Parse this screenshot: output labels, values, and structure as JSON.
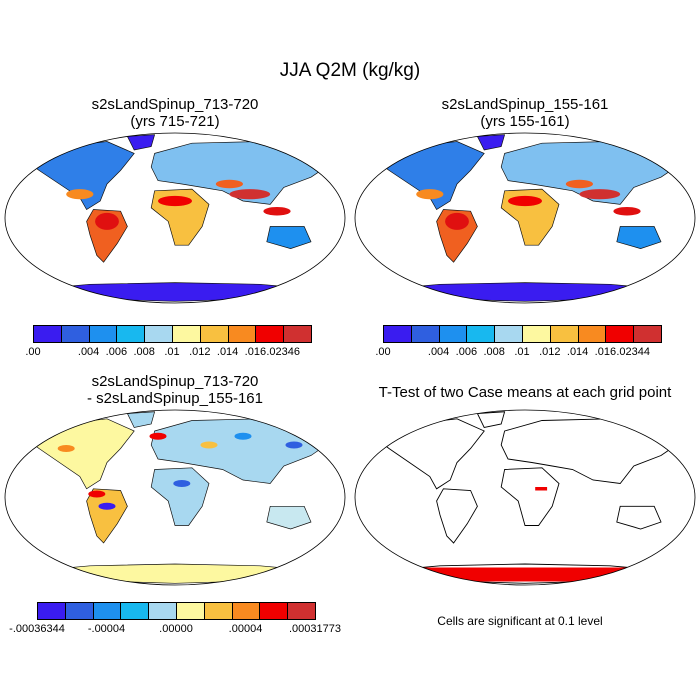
{
  "title": "JJA Q2M (kg/kg)",
  "panels": [
    {
      "title": "s2sLandSpinup_713-720\n(yrs 715-721)",
      "colorbar": {
        "colors": [
          "#3a1cf0",
          "#2f5fe0",
          "#1e90ef",
          "#18b8ef",
          "#a8d8f0",
          "#fdf8a0",
          "#f8c040",
          "#f88a20",
          "#f00000",
          "#d03030"
        ],
        "labels": [
          ".00",
          ".004",
          ".006",
          ".008",
          ".01",
          ".012",
          ".014",
          ".016",
          ".02346"
        ]
      }
    },
    {
      "title": "s2sLandSpinup_155-161\n(yrs 155-161)",
      "colorbar": {
        "colors": [
          "#3a1cf0",
          "#2f5fe0",
          "#1e90ef",
          "#18b8ef",
          "#a8d8f0",
          "#fdf8a0",
          "#f8c040",
          "#f88a20",
          "#f00000",
          "#d03030"
        ],
        "labels": [
          ".00",
          ".004",
          ".006",
          ".008",
          ".01",
          ".012",
          ".014",
          ".016",
          ".02344"
        ]
      }
    },
    {
      "title": "s2sLandSpinup_713-720\n- s2sLandSpinup_155-161",
      "colorbar": {
        "colors": [
          "#3a1cf0",
          "#2f5fe0",
          "#1e90ef",
          "#18b8ef",
          "#a8d8f0",
          "#fdf8a0",
          "#f8c040",
          "#f88a20",
          "#f00000",
          "#d03030"
        ],
        "labels": [
          "-.00036344",
          "-.00004",
          ".00000",
          ".00004",
          ".00031773"
        ]
      }
    },
    {
      "title": "T-Test of two Case means at each grid point",
      "note": "Cells are significant at 0.1 level"
    }
  ]
}
